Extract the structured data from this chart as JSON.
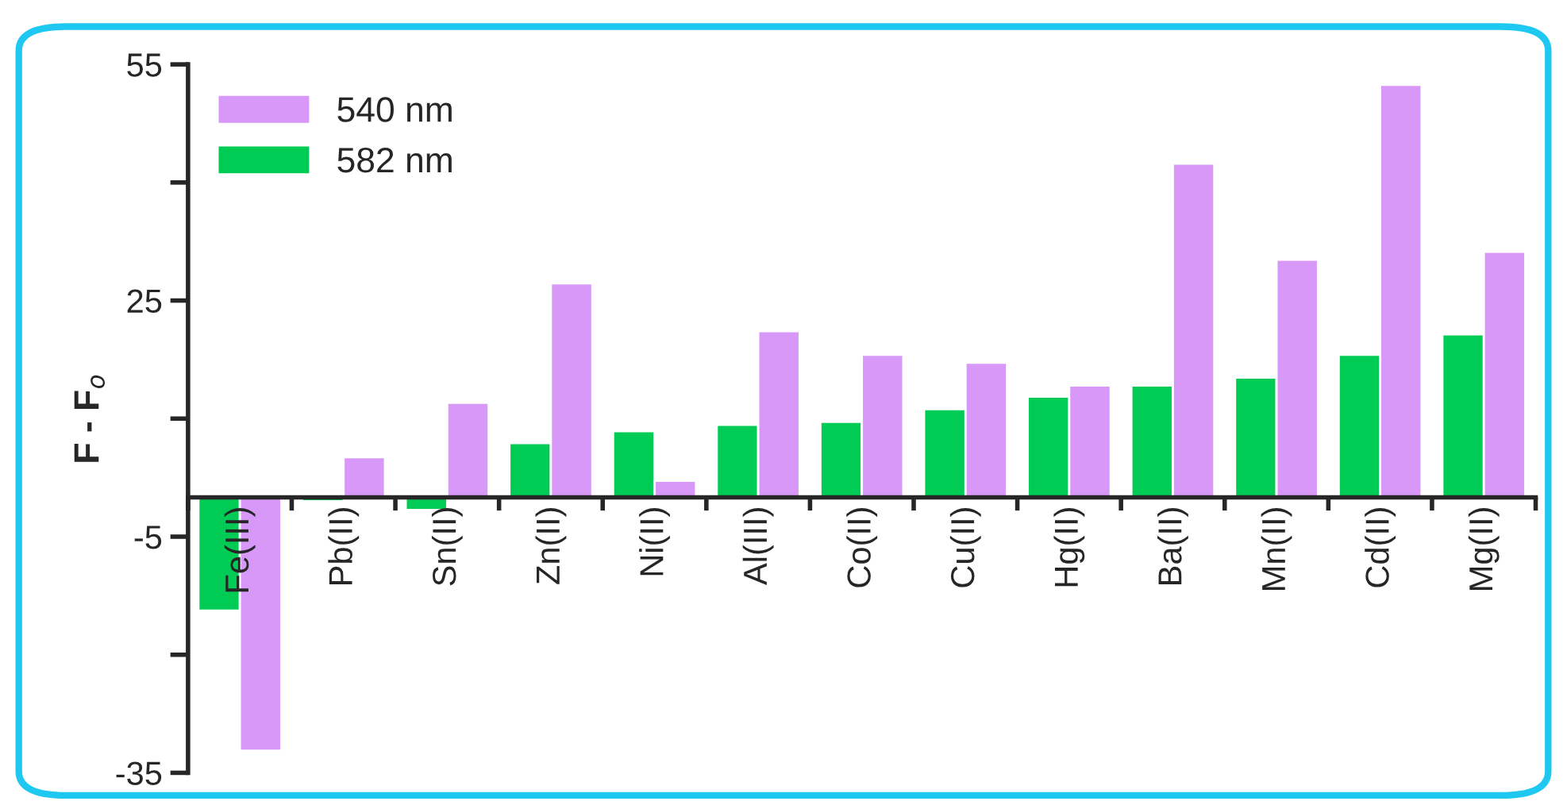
{
  "chart_data": {
    "type": "bar",
    "ylabel": "F - F$_{o}$",
    "categories": [
      "Fe(III)",
      "Pb(II)",
      "Sn(II)",
      "Zn(II)",
      "Ni(II)",
      "Al(III)",
      "Co(II)",
      "Cu(II)",
      "Hg(II)",
      "Ba(II)",
      "Mn(II)",
      "Cd(II)",
      "Mg(II)"
    ],
    "series": [
      {
        "name": "582 nm",
        "color": "#00cc55",
        "values": [
          -14.4,
          -0.5,
          -1.6,
          6.9,
          8.4,
          9.2,
          9.6,
          11.2,
          12.8,
          14.2,
          15.2,
          18.1,
          20.7
        ]
      },
      {
        "name": "540 nm",
        "color": "#d898f8",
        "values": [
          -32.2,
          5.1,
          12.0,
          27.2,
          2.1,
          21.1,
          18.1,
          17.1,
          14.2,
          42.4,
          30.2,
          52.4,
          31.2
        ]
      }
    ],
    "ylim": [
      -35,
      55
    ],
    "yticks": [
      55,
      {
        "value": 40,
        "label": null
      },
      25,
      {
        "value": 10,
        "label": null
      },
      -5,
      {
        "value": -20,
        "label": null
      },
      -35
    ],
    "legend": "top left",
    "grid": false
  }
}
